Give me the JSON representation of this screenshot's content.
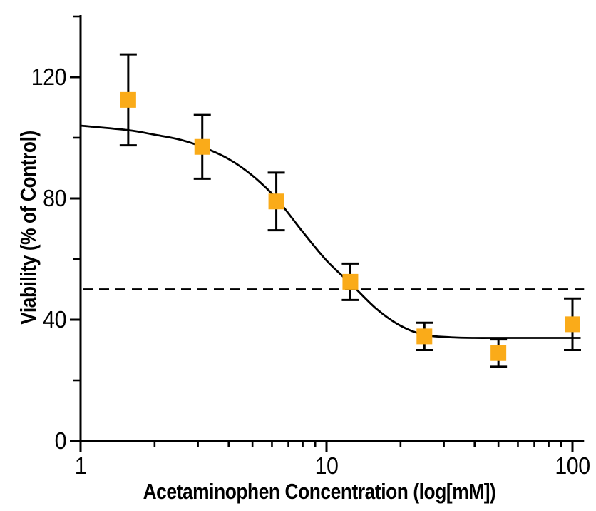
{
  "chart_data": {
    "type": "scatter",
    "subtype": "dose-response-with-errorbars-and-fit",
    "xlabel": "Acetaminophen Concentration (log[mM])",
    "ylabel": "Viability (% of Control)",
    "x_scale": "log",
    "xlim": [
      1,
      110
    ],
    "ylim": [
      0,
      140
    ],
    "grid": false,
    "legend_position": "none",
    "x_axis": {
      "major_ticks": [
        1,
        10,
        100
      ],
      "major_tick_labels": [
        "1",
        "10",
        "100"
      ],
      "minor_ticks": [
        2,
        3,
        4,
        5,
        6,
        7,
        8,
        9,
        20,
        30,
        40,
        50,
        60,
        70,
        80,
        90
      ]
    },
    "y_axis": {
      "major_ticks": [
        0,
        40,
        80,
        120
      ],
      "major_tick_labels": [
        "0",
        "40",
        "80",
        "120"
      ],
      "minor_ticks": [
        20,
        60,
        100,
        140
      ]
    },
    "reference_line": {
      "y": 50,
      "style": "dashed",
      "color": "#000000",
      "meaning": "50% viability (IC50 level)"
    },
    "series": [
      {
        "name": "Viability (% of Control)",
        "marker": "square",
        "marker_color": "#FAAB19",
        "marker_size_px": 22,
        "errorbar_color": "#000000",
        "points": [
          {
            "x": 1.5625,
            "y": 112.5,
            "yerr": 15
          },
          {
            "x": 3.125,
            "y": 97,
            "yerr": 10.5
          },
          {
            "x": 6.25,
            "y": 79,
            "yerr": 9.5
          },
          {
            "x": 12.5,
            "y": 52.5,
            "yerr": 6
          },
          {
            "x": 25,
            "y": 34.5,
            "yerr": 4.5
          },
          {
            "x": 50,
            "y": 29,
            "yerr": 4.5
          },
          {
            "x": 100,
            "y": 38.5,
            "yerr": 8.5
          }
        ]
      }
    ],
    "fit_curve": {
      "name": "sigmoidal dose-response fit",
      "color": "#000000",
      "top_plateau": 104,
      "bottom_plateau": 34,
      "points": [
        [
          1,
          104
        ],
        [
          1.5625,
          102.5
        ],
        [
          2,
          101
        ],
        [
          2.5,
          99.5
        ],
        [
          3.125,
          97
        ],
        [
          4,
          93
        ],
        [
          5,
          87.5
        ],
        [
          6.25,
          80
        ],
        [
          8,
          69
        ],
        [
          10,
          59.5
        ],
        [
          12.5,
          52
        ],
        [
          16,
          43.5
        ],
        [
          20,
          38
        ],
        [
          25,
          35
        ],
        [
          32,
          34.2
        ],
        [
          40,
          34
        ],
        [
          50,
          34
        ],
        [
          70,
          34
        ],
        [
          100,
          34
        ],
        [
          108,
          34
        ]
      ]
    },
    "colors": {
      "axis": "#000000",
      "background": "#FFFFFF",
      "marker": "#FAAB19"
    }
  }
}
